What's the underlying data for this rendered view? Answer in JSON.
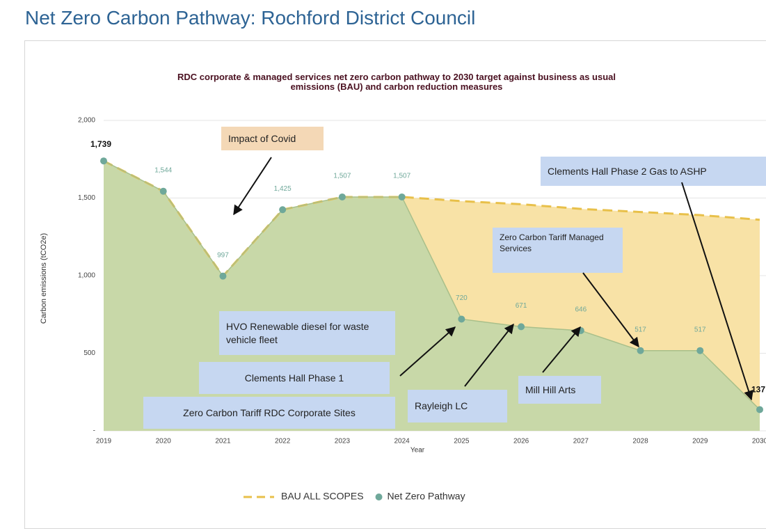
{
  "page_title": "Net Zero Carbon Pathway: Rochford District Council",
  "chart_data": {
    "type": "area",
    "title": "RDC corporate & managed services net zero carbon pathway to 2030 target against business as usual emissions (BAU) and carbon reduction measures",
    "x_label": "Year",
    "y_label": "Carbon emissions (tCO2e)",
    "categories": [
      "2019",
      "2020",
      "2021",
      "2022",
      "2023",
      "2024",
      "2025",
      "2026",
      "2027",
      "2028",
      "2029",
      "2030"
    ],
    "series": [
      {
        "name": "BAU ALL SCOPES",
        "color": "#e8c04a",
        "fill": "#f8e2a6",
        "dashed": true,
        "values": [
          1739,
          1544,
          997,
          1425,
          1507,
          1507,
          1480,
          1460,
          1430,
          1410,
          1390,
          1360
        ]
      },
      {
        "name": "Net Zero Pathway",
        "color": "#6fa89a",
        "fill": "#c8d8a8",
        "dashed": false,
        "values": [
          1739,
          1544,
          997,
          1425,
          1507,
          1507,
          720,
          671,
          646,
          517,
          517,
          137
        ],
        "value_labels": [
          "1,739",
          "1,544",
          "997",
          "1,425",
          "1,507",
          "1,507",
          "720",
          "671",
          "646",
          "517",
          "517",
          "137"
        ]
      }
    ],
    "ylim": [
      0,
      2000
    ],
    "yticks": [
      {
        "value": 0,
        "label": "-"
      },
      500,
      {
        "value": 1000,
        "label": "1,000"
      },
      {
        "value": 1500,
        "label": "1,500"
      },
      {
        "value": 2000,
        "label": "2,000"
      }
    ],
    "grid": true,
    "legend": "bottom",
    "annotations": [
      {
        "text": "Impact of Covid"
      },
      {
        "text": "Clements Hall Phase 2 Gas to ASHP"
      },
      {
        "text": "Zero Carbon Tariff Managed Services"
      },
      {
        "text": "HVO Renewable diesel for waste vehicle fleet"
      },
      {
        "text": "Clements Hall Phase 1"
      },
      {
        "text": "Zero Carbon Tariff RDC Corporate Sites"
      },
      {
        "text": "Rayleigh LC"
      },
      {
        "text": "Mill Hill Arts"
      }
    ]
  }
}
